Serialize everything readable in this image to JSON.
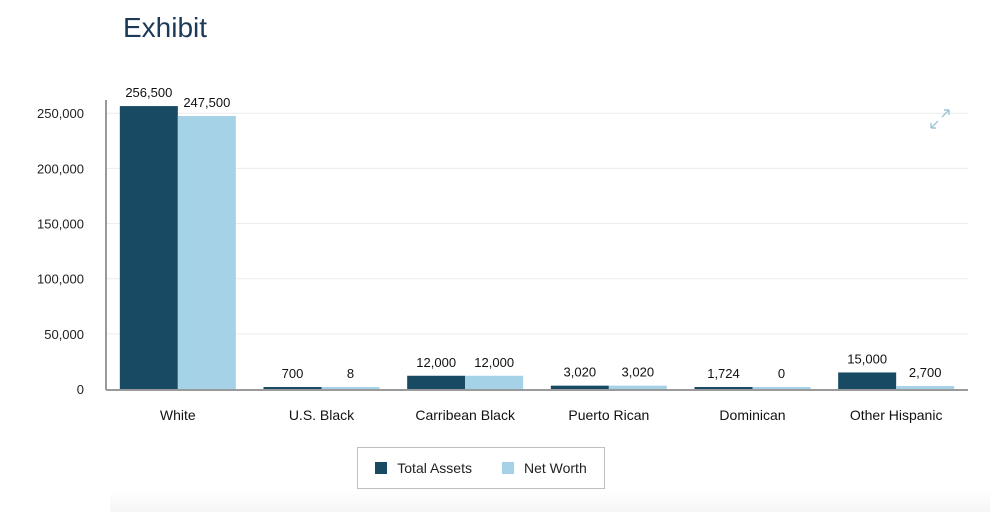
{
  "heading": "Exhibit",
  "colors": {
    "total_assets": "#184a63",
    "net_worth": "#a6d2e8",
    "heading": "#1b3a57"
  },
  "icons": {
    "expand": "expand-icon"
  },
  "chart_data": {
    "type": "bar",
    "categories": [
      "White",
      "U.S. Black",
      "Carribean Black",
      "Puerto Rican",
      "Dominican",
      "Other Hispanic"
    ],
    "series": [
      {
        "name": "Total Assets",
        "values": [
          256500,
          700,
          12000,
          3020,
          1724,
          15000
        ],
        "labels": [
          "256,500",
          "700",
          "12,000",
          "3,020",
          "1,724",
          "15,000"
        ]
      },
      {
        "name": "Net Worth",
        "values": [
          247500,
          8,
          12000,
          3020,
          0,
          2700
        ],
        "labels": [
          "247,500",
          "8",
          "12,000",
          "3,020",
          "0",
          "2,700"
        ]
      }
    ],
    "yticks": [
      0,
      50000,
      100000,
      150000,
      200000,
      250000
    ],
    "ytick_labels": [
      "0",
      "50,000",
      "100,000",
      "150,000",
      "200,000",
      "250,000"
    ],
    "ylim": [
      0,
      262000
    ],
    "grid": true,
    "legend_position": "bottom-center",
    "title": "",
    "xlabel": "",
    "ylabel": ""
  }
}
